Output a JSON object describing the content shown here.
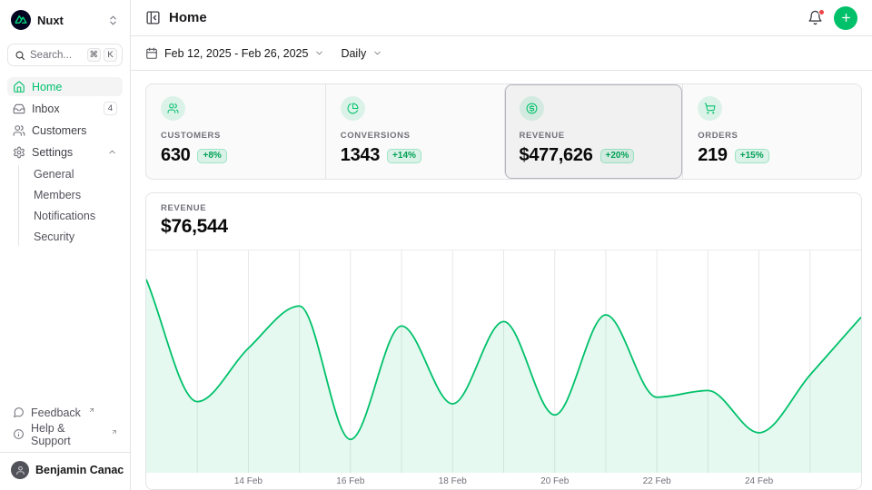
{
  "colors": {
    "primary": "#00C16A",
    "primary_text": "#00A155",
    "badge_bg": "rgba(0,193,106,0.12)",
    "icon_circle_bg": "rgba(0,193,106,0.12)",
    "chart_fill": "rgba(0,193,106,0.10)",
    "notification_dot": "#EF4444",
    "nuxt_logo_green": "#00DC82",
    "nuxt_logo_bg": "#020420"
  },
  "sidebar": {
    "workspace": {
      "name": "Nuxt"
    },
    "search": {
      "placeholder": "Search...",
      "shortcut_keys": [
        "⌘",
        "K"
      ]
    },
    "nav": [
      {
        "label": "Home",
        "active": true
      },
      {
        "label": "Inbox",
        "badge": "4"
      },
      {
        "label": "Customers"
      },
      {
        "label": "Settings",
        "expanded": true,
        "children": [
          {
            "label": "General"
          },
          {
            "label": "Members"
          },
          {
            "label": "Notifications"
          },
          {
            "label": "Security"
          }
        ]
      }
    ],
    "footer_links": [
      {
        "label": "Feedback",
        "external": true
      },
      {
        "label": "Help & Support",
        "external": true
      }
    ],
    "user": {
      "name": "Benjamin Canac"
    }
  },
  "header": {
    "title": "Home",
    "has_notification": true
  },
  "toolbar": {
    "date_range": "Feb 12, 2025 - Feb 26, 2025",
    "period": "Daily"
  },
  "stats": [
    {
      "label": "CUSTOMERS",
      "value": "630",
      "change": "+8%"
    },
    {
      "label": "CONVERSIONS",
      "value": "1343",
      "change": "+14%"
    },
    {
      "label": "REVENUE",
      "value": "$477,626",
      "change": "+20%",
      "selected": true
    },
    {
      "label": "ORDERS",
      "value": "219",
      "change": "+15%"
    }
  ],
  "chart_panel": {
    "label": "REVENUE",
    "value": "$76,544"
  },
  "chart_data": {
    "type": "area",
    "title": "Revenue (daily)",
    "x": [
      "12 Feb",
      "13 Feb",
      "14 Feb",
      "15 Feb",
      "16 Feb",
      "17 Feb",
      "18 Feb",
      "19 Feb",
      "20 Feb",
      "21 Feb",
      "22 Feb",
      "23 Feb",
      "24 Feb",
      "25 Feb",
      "26 Feb"
    ],
    "values": [
      87,
      32,
      56,
      75,
      15,
      66,
      31,
      68,
      26,
      71,
      34,
      37,
      18,
      44,
      70
    ],
    "ylim": [
      0,
      100
    ],
    "y_axis_labels_shown": false,
    "x_tick_labels": [
      "14 Feb",
      "16 Feb",
      "18 Feb",
      "20 Feb",
      "22 Feb",
      "24 Feb"
    ],
    "grid": "vertical-per-day",
    "legend": "none",
    "interpolation": "monotone"
  }
}
